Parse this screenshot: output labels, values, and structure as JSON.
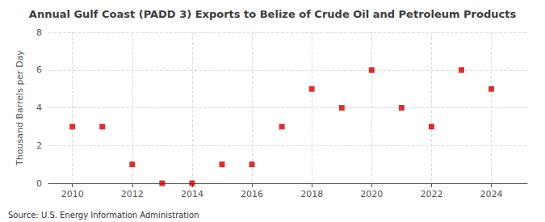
{
  "chart_data": {
    "type": "scatter",
    "title": "Annual Gulf Coast (PADD 3) Exports to Belize of Crude Oil and Petroleum Products",
    "ylabel": "Thousand Barrels per Day",
    "annotations": [
      "Source: U.S. Energy Information Administration"
    ],
    "x": [
      2010,
      2011,
      2012,
      2013,
      2014,
      2015,
      2016,
      2017,
      2018,
      2019,
      2020,
      2021,
      2022,
      2023,
      2024
    ],
    "values": [
      3,
      3,
      1,
      0,
      0,
      1,
      1,
      3,
      5,
      4,
      6,
      4,
      3,
      6,
      5
    ],
    "color": "#cc0000",
    "marker": "square",
    "xlim": [
      2009.2,
      2025.2
    ],
    "xticks": [
      2010,
      2012,
      2014,
      2016,
      2018,
      2020,
      2022,
      2024
    ],
    "ylim": [
      0,
      8
    ],
    "yticks": [
      0,
      2,
      4,
      6,
      8
    ],
    "grid": true
  }
}
